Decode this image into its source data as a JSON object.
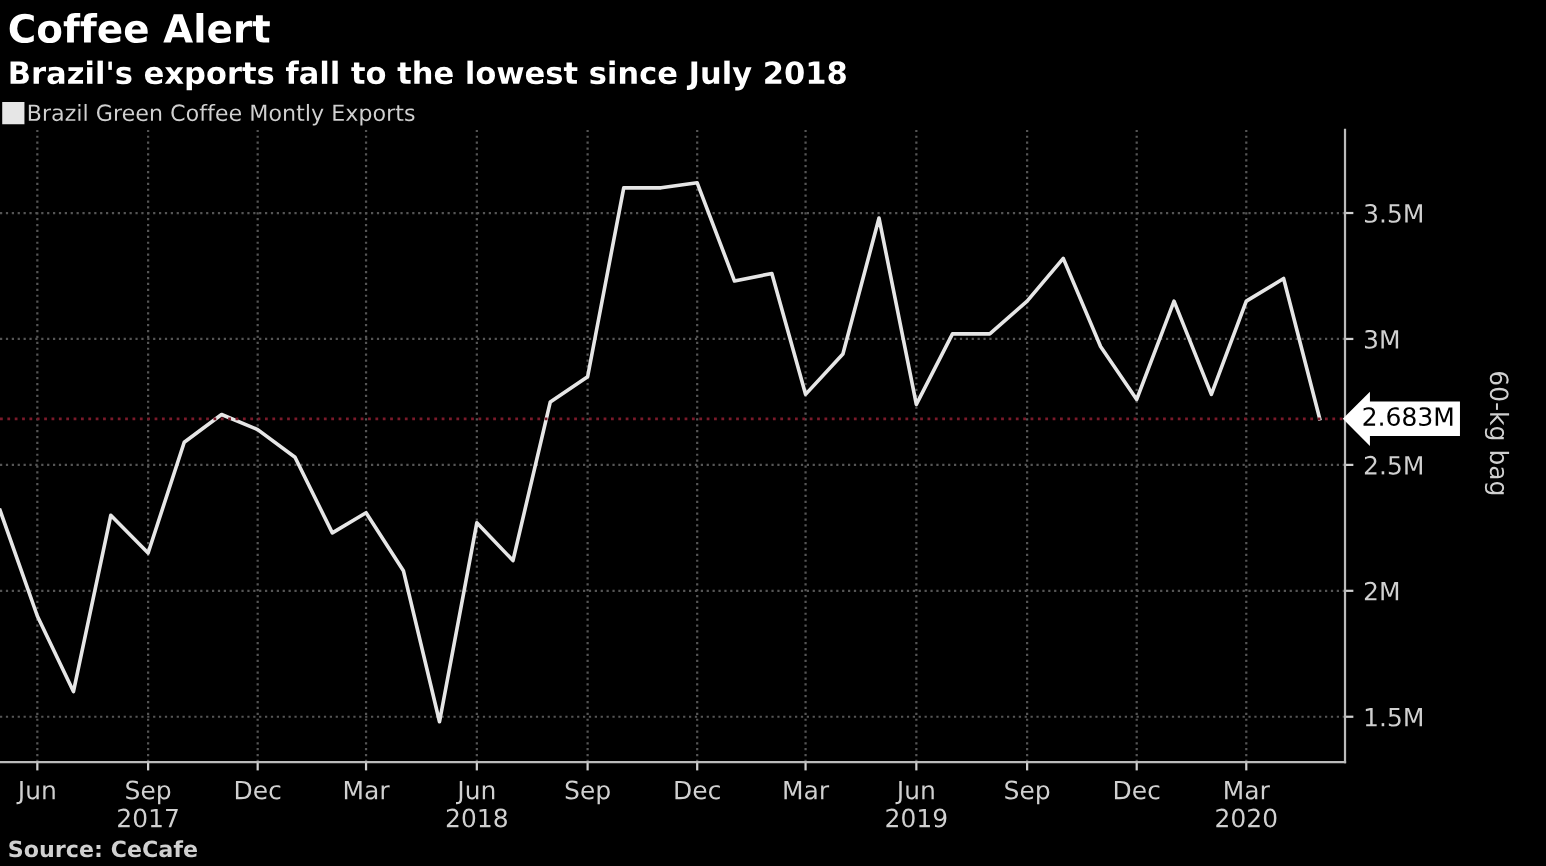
{
  "chart_data": {
    "type": "line",
    "title": "Coffee Alert",
    "subtitle": "Brazil's exports fall to the lowest since July 2018",
    "ylabel": "60-kg bag",
    "annotations": [
      "Source: CeCafe"
    ],
    "x": [
      "2017-05",
      "2017-06",
      "2017-07",
      "2017-08",
      "2017-09",
      "2017-10",
      "2017-11",
      "2017-12",
      "2018-01",
      "2018-02",
      "2018-03",
      "2018-04",
      "2018-05",
      "2018-06",
      "2018-07",
      "2018-08",
      "2018-09",
      "2018-10",
      "2018-11",
      "2018-12",
      "2019-01",
      "2019-02",
      "2019-03",
      "2019-04",
      "2019-05",
      "2019-06",
      "2019-07",
      "2019-08",
      "2019-09",
      "2019-10",
      "2019-11",
      "2019-12",
      "2020-01",
      "2020-02",
      "2020-03",
      "2020-04",
      "2020-05"
    ],
    "series": [
      {
        "name": "Brazil Green Coffee Montly Exports",
        "color": "#e6e6e6",
        "values": [
          2.32,
          1.9,
          1.6,
          2.3,
          2.15,
          2.59,
          2.7,
          2.64,
          2.53,
          2.23,
          2.31,
          2.08,
          1.48,
          2.27,
          2.12,
          2.75,
          2.85,
          3.6,
          3.6,
          3.62,
          3.23,
          3.26,
          2.78,
          2.94,
          3.48,
          2.74,
          3.02,
          3.02,
          3.15,
          3.32,
          2.97,
          2.76,
          3.15,
          2.78,
          3.15,
          3.24,
          2.683
        ]
      }
    ],
    "ref_lines": [
      {
        "axis": "y",
        "value": 2.683,
        "label": "2.683M",
        "color": "#7a1a2a",
        "line_style": "dotted"
      }
    ],
    "xlim": [
      "2017-05-01",
      "2020-05-22"
    ],
    "xticks": [
      {
        "value": "2017-06-01",
        "label": "Jun"
      },
      {
        "value": "2017-09-01",
        "label": "Sep\n2017"
      },
      {
        "value": "2017-12-01",
        "label": "Dec"
      },
      {
        "value": "2018-03-01",
        "label": "Mar"
      },
      {
        "value": "2018-06-01",
        "label": "Jun\n2018"
      },
      {
        "value": "2018-09-01",
        "label": "Sep"
      },
      {
        "value": "2018-12-01",
        "label": "Dec"
      },
      {
        "value": "2019-03-01",
        "label": "Mar"
      },
      {
        "value": "2019-06-01",
        "label": "Jun\n2019"
      },
      {
        "value": "2019-09-01",
        "label": "Sep"
      },
      {
        "value": "2019-12-01",
        "label": "Dec"
      },
      {
        "value": "2020-03-01",
        "label": "Mar\n2020"
      }
    ],
    "ylim": [
      1.32,
      3.83
    ],
    "yticks": [
      {
        "value": 1.5,
        "label": "1.5M"
      },
      {
        "value": 2,
        "label": "2M"
      },
      {
        "value": 2.5,
        "label": "2.5M"
      },
      {
        "value": 3,
        "label": "3M"
      },
      {
        "value": 3.5,
        "label": "3.5M"
      }
    ],
    "grid": true,
    "legend": "top left",
    "marker": "none",
    "line_style": "solid"
  }
}
